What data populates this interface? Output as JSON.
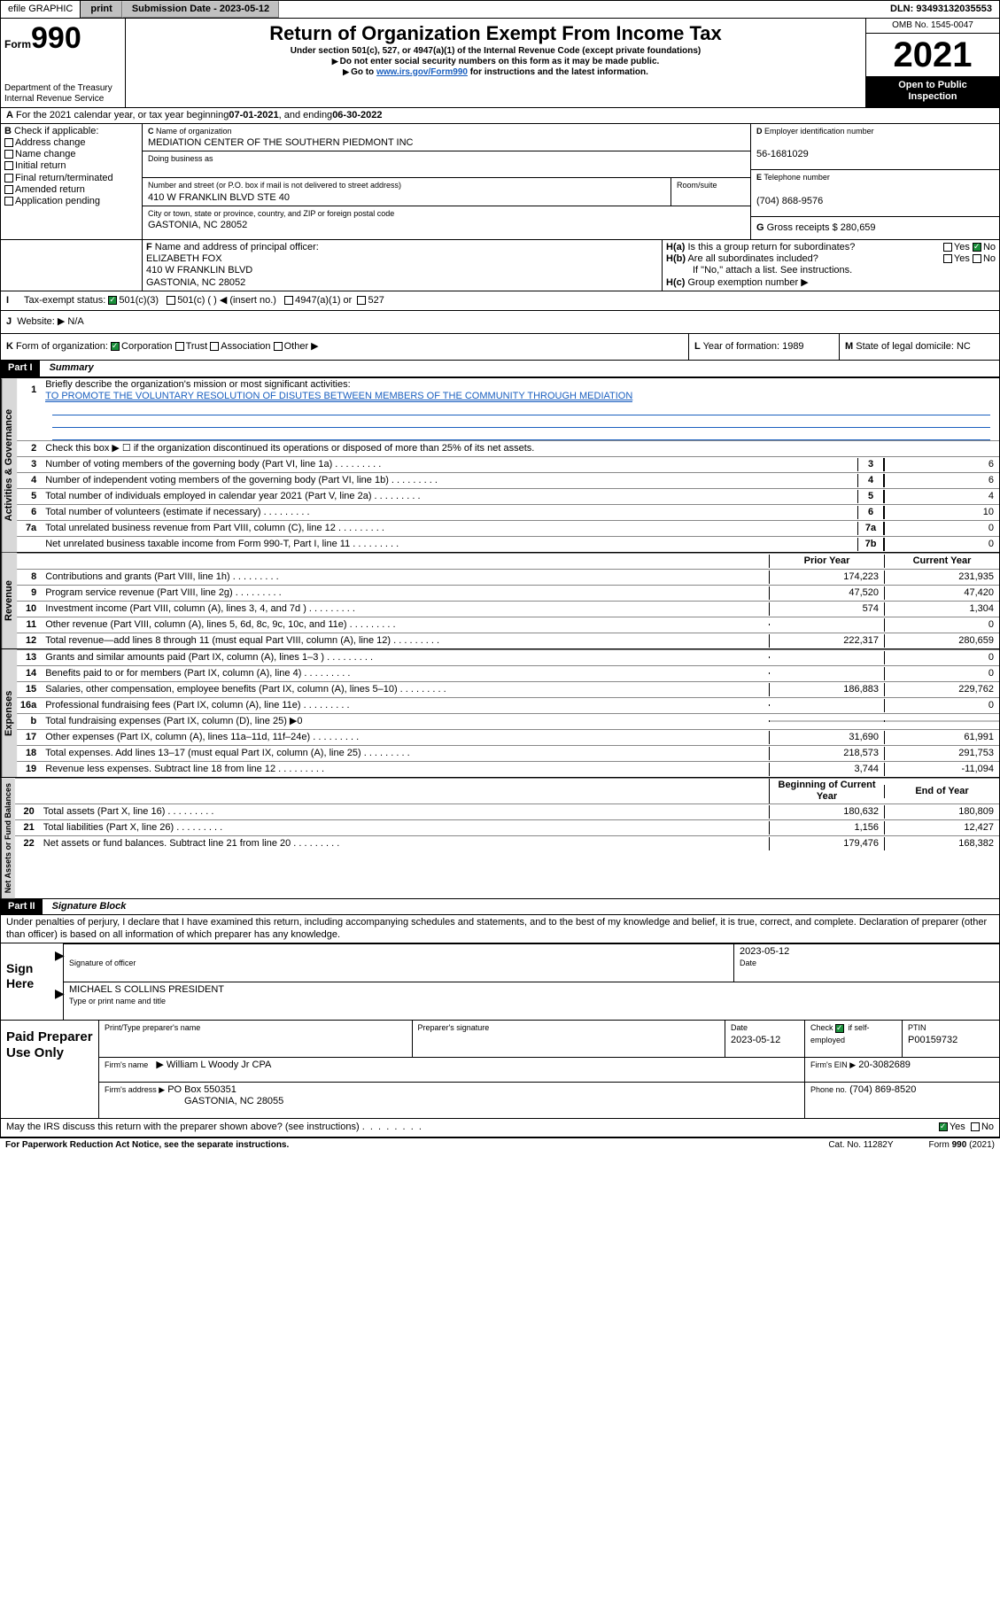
{
  "topbar": {
    "efile": "efile GRAPHIC",
    "print": "print",
    "submission_label": "Submission Date - 2023-05-12",
    "dln_label": "DLN: 93493132035553"
  },
  "header": {
    "form_small": "Form",
    "form_big": "990",
    "dept": "Department of the Treasury",
    "irs": "Internal Revenue Service",
    "title": "Return of Organization Exempt From Income Tax",
    "line1": "Under section 501(c), 527, or 4947(a)(1) of the Internal Revenue Code (except private foundations)",
    "line2": "Do not enter social security numbers on this form as it may be made public.",
    "line3a": "Go to ",
    "line3_link": "www.irs.gov/Form990",
    "line3b": " for instructions and the latest information.",
    "omb": "OMB No. 1545-0047",
    "year": "2021",
    "inspect1": "Open to Public",
    "inspect2": "Inspection"
  },
  "A": {
    "text": "For the 2021 calendar year, or tax year beginning ",
    "begin": "07-01-2021",
    "mid": " , and ending ",
    "end": "06-30-2022"
  },
  "B": {
    "label": "Check if applicable:",
    "items": [
      "Address change",
      "Name change",
      "Initial return",
      "Final return/terminated",
      "Amended return",
      "Application pending"
    ]
  },
  "C": {
    "name_lbl": "Name of organization",
    "name": "MEDIATION CENTER OF THE SOUTHERN PIEDMONT INC",
    "dba_lbl": "Doing business as",
    "street_lbl": "Number and street (or P.O. box if mail is not delivered to street address)",
    "room_lbl": "Room/suite",
    "street": "410 W FRANKLIN BLVD STE 40",
    "city_lbl": "City or town, state or province, country, and ZIP or foreign postal code",
    "city": "GASTONIA, NC  28052"
  },
  "D": {
    "lbl": "Employer identification number",
    "val": "56-1681029"
  },
  "E": {
    "lbl": "Telephone number",
    "val": "(704) 868-9576"
  },
  "G": {
    "lbl": "Gross receipts $",
    "val": "280,659"
  },
  "F": {
    "lbl": "Name and address of principal officer:",
    "name": "ELIZABETH FOX",
    "street": "410 W FRANKLIN BLVD",
    "city": "GASTONIA, NC  28052"
  },
  "H": {
    "a": "Is this a group return for subordinates?",
    "b": "Are all subordinates included?",
    "note": "If \"No,\" attach a list. See instructions.",
    "c": "Group exemption number ▶",
    "yes": "Yes",
    "no": "No"
  },
  "I": {
    "lbl": "Tax-exempt status:",
    "c3": "501(c)(3)",
    "c": "501(c) (  ) ◀ (insert no.)",
    "a1": "4947(a)(1) or",
    "s527": "527"
  },
  "J": {
    "lbl": "Website: ▶",
    "val": "N/A"
  },
  "K": {
    "lbl": "Form of organization:",
    "corp": "Corporation",
    "trust": "Trust",
    "assoc": "Association",
    "other": "Other ▶"
  },
  "L": {
    "lbl": "Year of formation:",
    "val": "1989"
  },
  "M": {
    "lbl": "State of legal domicile:",
    "val": "NC"
  },
  "partI": {
    "hdr": "Part I",
    "title": "Summary",
    "l1_lbl": "Briefly describe the organization's mission or most significant activities:",
    "l1_val": "TO PROMOTE THE VOLUNTARY RESOLUTION OF DISUTES BETWEEN MEMBERS OF THE COMMUNITY THROUGH MEDIATION",
    "l2": "Check this box ▶ ☐ if the organization discontinued its operations or disposed of more than 25% of its net assets.",
    "tabs": {
      "gov": "Activities & Governance",
      "rev": "Revenue",
      "exp": "Expenses",
      "net": "Net Assets or Fund Balances"
    },
    "col_prior": "Prior Year",
    "col_current": "Current Year",
    "col_begin": "Beginning of Current Year",
    "col_end": "End of Year",
    "rows_gov": [
      {
        "n": "3",
        "t": "Number of voting members of the governing body (Part VI, line 1a)",
        "c": "3",
        "v": "6"
      },
      {
        "n": "4",
        "t": "Number of independent voting members of the governing body (Part VI, line 1b)",
        "c": "4",
        "v": "6"
      },
      {
        "n": "5",
        "t": "Total number of individuals employed in calendar year 2021 (Part V, line 2a)",
        "c": "5",
        "v": "4"
      },
      {
        "n": "6",
        "t": "Total number of volunteers (estimate if necessary)",
        "c": "6",
        "v": "10"
      },
      {
        "n": "7a",
        "t": "Total unrelated business revenue from Part VIII, column (C), line 12",
        "c": "7a",
        "v": "0"
      },
      {
        "n": "",
        "t": "Net unrelated business taxable income from Form 990-T, Part I, line 11",
        "c": "7b",
        "v": "0"
      }
    ],
    "rows_rev": [
      {
        "n": "8",
        "t": "Contributions and grants (Part VIII, line 1h)",
        "p": "174,223",
        "v": "231,935"
      },
      {
        "n": "9",
        "t": "Program service revenue (Part VIII, line 2g)",
        "p": "47,520",
        "v": "47,420"
      },
      {
        "n": "10",
        "t": "Investment income (Part VIII, column (A), lines 3, 4, and 7d )",
        "p": "574",
        "v": "1,304"
      },
      {
        "n": "11",
        "t": "Other revenue (Part VIII, column (A), lines 5, 6d, 8c, 9c, 10c, and 11e)",
        "p": "",
        "v": "0"
      },
      {
        "n": "12",
        "t": "Total revenue—add lines 8 through 11 (must equal Part VIII, column (A), line 12)",
        "p": "222,317",
        "v": "280,659"
      }
    ],
    "rows_exp": [
      {
        "n": "13",
        "t": "Grants and similar amounts paid (Part IX, column (A), lines 1–3 )",
        "p": "",
        "v": "0"
      },
      {
        "n": "14",
        "t": "Benefits paid to or for members (Part IX, column (A), line 4)",
        "p": "",
        "v": "0"
      },
      {
        "n": "15",
        "t": "Salaries, other compensation, employee benefits (Part IX, column (A), lines 5–10)",
        "p": "186,883",
        "v": "229,762"
      },
      {
        "n": "16a",
        "t": "Professional fundraising fees (Part IX, column (A), line 11e)",
        "p": "",
        "v": "0"
      },
      {
        "n": "b",
        "t": "Total fundraising expenses (Part IX, column (D), line 25) ▶0",
        "nb": true
      },
      {
        "n": "17",
        "t": "Other expenses (Part IX, column (A), lines 11a–11d, 11f–24e)",
        "p": "31,690",
        "v": "61,991"
      },
      {
        "n": "18",
        "t": "Total expenses. Add lines 13–17 (must equal Part IX, column (A), line 25)",
        "p": "218,573",
        "v": "291,753"
      },
      {
        "n": "19",
        "t": "Revenue less expenses. Subtract line 18 from line 12",
        "p": "3,744",
        "v": "-11,094"
      }
    ],
    "rows_net": [
      {
        "n": "20",
        "t": "Total assets (Part X, line 16)",
        "p": "180,632",
        "v": "180,809"
      },
      {
        "n": "21",
        "t": "Total liabilities (Part X, line 26)",
        "p": "1,156",
        "v": "12,427"
      },
      {
        "n": "22",
        "t": "Net assets or fund balances. Subtract line 21 from line 20",
        "p": "179,476",
        "v": "168,382"
      }
    ]
  },
  "partII": {
    "hdr": "Part II",
    "title": "Signature Block",
    "decl": "Under penalties of perjury, I declare that I have examined this return, including accompanying schedules and statements, and to the best of my knowledge and belief, it is true, correct, and complete. Declaration of preparer (other than officer) is based on all information of which preparer has any knowledge."
  },
  "sign": {
    "lbl": "Sign Here",
    "sig_lbl": "Signature of officer",
    "date_lbl": "Date",
    "date": "2023-05-12",
    "name": "MICHAEL S COLLINS  PRESIDENT",
    "name_lbl": "Type or print name and title"
  },
  "prep": {
    "lbl": "Paid Preparer Use Only",
    "c_name": "Print/Type preparer's name",
    "c_sig": "Preparer's signature",
    "c_date": "Date",
    "date": "2023-05-12",
    "check": "Check",
    "self": "if self-employed",
    "ptin_lbl": "PTIN",
    "ptin": "P00159732",
    "firm_name_lbl": "Firm's name",
    "firm_name": "William L Woody Jr CPA",
    "firm_ein_lbl": "Firm's EIN ▶",
    "firm_ein": "20-3082689",
    "firm_addr_lbl": "Firm's address ▶",
    "firm_addr1": "PO Box 550351",
    "firm_addr2": "GASTONIA, NC  28055",
    "phone_lbl": "Phone no.",
    "phone": "(704) 869-8520"
  },
  "discuss": {
    "q": "May the IRS discuss this return with the preparer shown above? (see instructions)",
    "yes": "Yes",
    "no": "No"
  },
  "footer": {
    "left": "For Paperwork Reduction Act Notice, see the separate instructions.",
    "mid": "Cat. No. 11282Y",
    "right": "Form 990 (2021)"
  }
}
